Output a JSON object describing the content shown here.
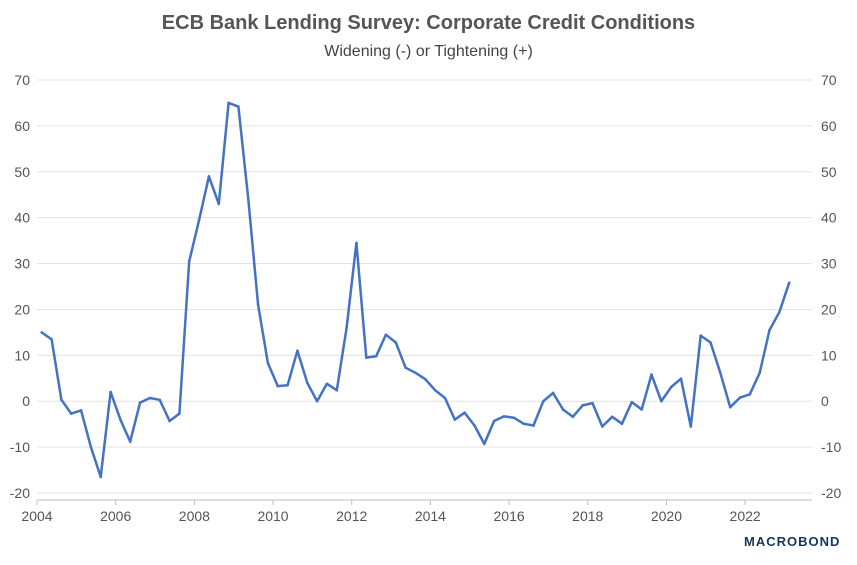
{
  "chart_data": {
    "type": "line",
    "title": "ECB Bank Lending Survey: Corporate Credit Conditions",
    "subtitle": "Widening (-) or Tightening (+)",
    "xlabel": "",
    "ylabel": "",
    "xlim": [
      2004.0,
      2023.7
    ],
    "ylim": [
      -20,
      70
    ],
    "x_ticks": [
      "2004",
      "2006",
      "2008",
      "2010",
      "2012",
      "2014",
      "2016",
      "2018",
      "2020",
      "2022"
    ],
    "y_ticks": [
      "70",
      "60",
      "50",
      "40",
      "30",
      "20",
      "10",
      "0",
      "-10",
      "-20"
    ],
    "grid": true,
    "legend": "none",
    "series_color": "#4472c4",
    "series": [
      {
        "x": [
          2004.12,
          2004.37,
          2004.62,
          2004.87,
          2005.12,
          2005.37,
          2005.62,
          2005.87,
          2006.12,
          2006.37,
          2006.62,
          2006.87,
          2007.12,
          2007.37,
          2007.62,
          2007.87,
          2008.12,
          2008.37,
          2008.62,
          2008.87,
          2009.12,
          2009.37,
          2009.62,
          2009.87,
          2010.12,
          2010.37,
          2010.62,
          2010.87,
          2011.12,
          2011.37,
          2011.62,
          2011.87,
          2012.12,
          2012.37,
          2012.62,
          2012.87,
          2013.12,
          2013.37,
          2013.62,
          2013.87,
          2014.12,
          2014.37,
          2014.62,
          2014.87,
          2015.12,
          2015.37,
          2015.62,
          2015.87,
          2016.12,
          2016.37,
          2016.62,
          2016.87,
          2017.12,
          2017.37,
          2017.62,
          2017.87,
          2018.12,
          2018.37,
          2018.62,
          2018.87,
          2019.12,
          2019.37,
          2019.62,
          2019.87,
          2020.12,
          2020.37,
          2020.62,
          2020.87,
          2021.12,
          2021.37,
          2021.62,
          2021.87,
          2022.12,
          2022.37,
          2022.62,
          2022.87,
          2023.12
        ],
        "values": [
          15,
          13.5,
          0.3,
          -2.7,
          -2,
          -10,
          -16.5,
          2,
          -4,
          -8.8,
          -0.3,
          0.7,
          0.3,
          -4.3,
          -2.7,
          30.5,
          39.5,
          49,
          43,
          65,
          64.2,
          44,
          21,
          8.3,
          3.3,
          3.5,
          11,
          4,
          0,
          3.8,
          2.4,
          16,
          34.5,
          9.5,
          9.8,
          14.5,
          12.8,
          7.3,
          6.2,
          4.8,
          2.4,
          0.7,
          -4,
          -2.5,
          -5.3,
          -9.3,
          -4.3,
          -3.3,
          -3.6,
          -4.9,
          -5.3,
          0,
          1.8,
          -1.8,
          -3.4,
          -0.9,
          -0.4,
          -5.5,
          -3.4,
          -4.9,
          -0.2,
          -1.8,
          5.8,
          0,
          3.1,
          4.9,
          -5.5,
          14.3,
          12.8,
          6.2,
          -1.3,
          0.8,
          1.5,
          6.2,
          15.5,
          19.4,
          25.8
        ]
      }
    ]
  },
  "branding": {
    "logo_text": "MACROBOND"
  }
}
